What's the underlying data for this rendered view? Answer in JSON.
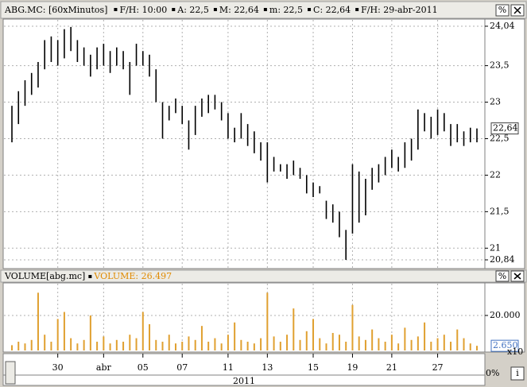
{
  "chart_data": {
    "type": "ohlc",
    "title": "ABG.MC: [60xMinutos]",
    "info": [
      "F/H: 10:00",
      "A: 22,5",
      "M: 22,64",
      "m: 22,5",
      "C: 22,64",
      "F/H: 29-abr-2011"
    ],
    "buttons": [
      "%"
    ],
    "period_label": "2011",
    "zoom_label": "0%",
    "info_button": "i",
    "categories": [
      null,
      null,
      null,
      null,
      null,
      null,
      null,
      "30",
      null,
      null,
      null,
      null,
      null,
      null,
      "abr",
      null,
      null,
      null,
      null,
      null,
      "05",
      null,
      null,
      null,
      null,
      null,
      "07",
      null,
      null,
      null,
      null,
      null,
      null,
      "11",
      null,
      null,
      null,
      null,
      null,
      "13",
      null,
      null,
      null,
      null,
      null,
      null,
      "15",
      null,
      null,
      null,
      null,
      null,
      "19",
      null,
      null,
      null,
      null,
      null,
      "21",
      null,
      null,
      null,
      null,
      null,
      null,
      "27",
      null,
      null,
      null,
      null,
      null,
      null
    ],
    "series": [
      {
        "name": "ABG.MC",
        "color": "#000000",
        "high": [
          22.95,
          23.15,
          23.3,
          23.4,
          23.55,
          23.85,
          23.9,
          23.85,
          24.0,
          24.03,
          23.85,
          23.75,
          23.65,
          23.75,
          23.8,
          23.7,
          23.75,
          23.7,
          23.55,
          23.8,
          23.7,
          23.65,
          23.45,
          23.0,
          22.95,
          23.05,
          22.95,
          22.75,
          22.95,
          23.05,
          23.1,
          23.1,
          23.0,
          22.85,
          22.65,
          22.85,
          22.7,
          22.6,
          22.45,
          22.45,
          22.25,
          22.15,
          22.15,
          22.2,
          22.1,
          22.0,
          21.9,
          21.85,
          21.65,
          21.6,
          21.5,
          21.25,
          22.15,
          22.05,
          21.95,
          22.1,
          22.15,
          22.25,
          22.35,
          22.25,
          22.45,
          22.5,
          22.9,
          22.85,
          22.8,
          22.9,
          22.85,
          22.7,
          22.7,
          22.6,
          22.65,
          22.64
        ],
        "low": [
          22.45,
          22.7,
          22.95,
          23.1,
          23.2,
          23.45,
          23.55,
          23.5,
          23.6,
          23.7,
          23.55,
          23.5,
          23.35,
          23.45,
          23.5,
          23.4,
          23.5,
          23.45,
          23.1,
          23.5,
          23.5,
          23.35,
          23.0,
          22.5,
          22.75,
          22.85,
          22.7,
          22.35,
          22.55,
          22.8,
          22.85,
          22.9,
          22.75,
          22.5,
          22.45,
          22.5,
          22.4,
          22.3,
          22.2,
          21.9,
          22.05,
          22.05,
          21.95,
          22.0,
          21.95,
          21.75,
          21.7,
          21.75,
          21.4,
          21.35,
          21.15,
          20.84,
          21.2,
          21.35,
          21.45,
          21.8,
          21.9,
          22.0,
          22.1,
          22.05,
          22.1,
          22.2,
          22.35,
          22.6,
          22.5,
          22.55,
          22.6,
          22.4,
          22.45,
          22.4,
          22.45,
          22.45
        ]
      }
    ],
    "ylim": [
      20.84,
      24.04
    ],
    "yticks": [
      {
        "value": 24.04,
        "label": "24,04"
      },
      {
        "value": 23.5,
        "label": "23,5"
      },
      23,
      {
        "value": 22.5,
        "label": "22,5"
      },
      22,
      {
        "value": 21.5,
        "label": "21,5"
      },
      21,
      {
        "value": 20.84,
        "label": "20,84"
      }
    ],
    "last_price": {
      "value": 22.64,
      "label": "22,64"
    },
    "volume": {
      "title": "VOLUME[abg.mc]",
      "subtitle": "VOLUME: 26.497",
      "color": "#e0a030",
      "values": [
        3000,
        5000,
        4000,
        6000,
        33000,
        9000,
        5000,
        18000,
        22000,
        7000,
        4000,
        6000,
        20000,
        5000,
        8000,
        4000,
        6000,
        5000,
        9000,
        7000,
        22000,
        15000,
        6000,
        5000,
        9000,
        4000,
        5000,
        8000,
        6000,
        14000,
        5000,
        7000,
        4000,
        9000,
        16000,
        6000,
        5000,
        4000,
        7000,
        33000,
        8000,
        5000,
        9000,
        24000,
        6000,
        11000,
        18000,
        7000,
        4000,
        10000,
        9000,
        5000,
        26000,
        8000,
        6000,
        12000,
        7000,
        5000,
        9000,
        4000,
        13000,
        6000,
        8000,
        16000,
        5000,
        7000,
        9000,
        5000,
        12000,
        7000,
        4000,
        2650
      ],
      "ylim": [
        0,
        37700
      ],
      "yticks": [
        {
          "value": 20000,
          "label": "20.000"
        }
      ],
      "last_value": {
        "value": 2650,
        "label": "2.650"
      },
      "multiplier": "x10"
    },
    "grid": true
  }
}
